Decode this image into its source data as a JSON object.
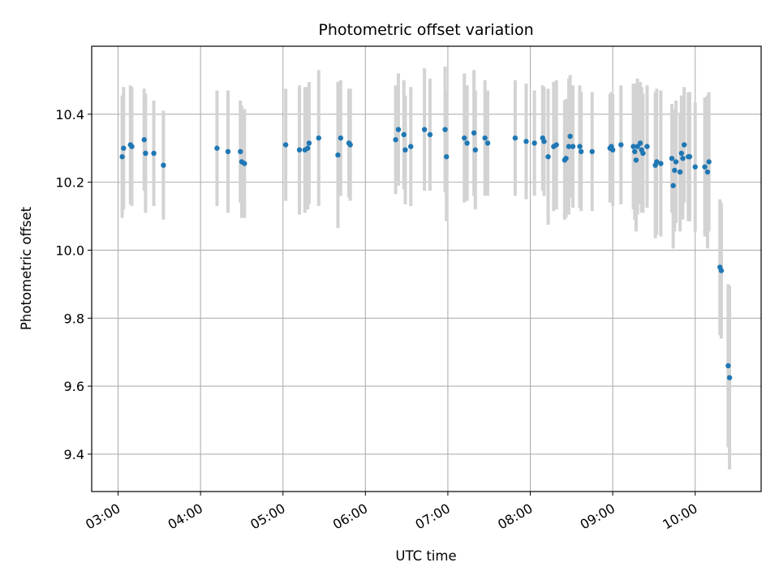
{
  "chart_data": {
    "type": "scatter",
    "title": "Photometric offset variation",
    "xlabel": "UTC time",
    "ylabel": "Photometric offset",
    "x_unit": "hours UTC",
    "xlim": [
      2.68,
      10.8
    ],
    "ylim": [
      9.29,
      10.6
    ],
    "x_ticks": [
      3,
      4,
      5,
      6,
      7,
      8,
      9,
      10
    ],
    "x_tick_labels": [
      "03:00",
      "04:00",
      "05:00",
      "06:00",
      "07:00",
      "08:00",
      "09:00",
      "10:00"
    ],
    "y_ticks": [
      9.4,
      9.6,
      9.8,
      10.0,
      10.2,
      10.4
    ],
    "y_tick_labels": [
      "9.4",
      "9.6",
      "9.8",
      "10.0",
      "10.2",
      "10.4"
    ],
    "grid": true,
    "marker_color": "#1f77b4",
    "errorbar_color": "#d3d3d3",
    "series": [
      {
        "x": [
          "03:03",
          "03:04",
          "03:09",
          "03:10",
          "03:19",
          "03:20",
          "03:26",
          "03:33",
          "04:12",
          "04:20",
          "04:29",
          "04:30",
          "04:32",
          "05:02",
          "05:12",
          "05:16",
          "05:18",
          "05:19",
          "05:26",
          "05:40",
          "05:42",
          "05:48",
          "05:49",
          "06:22",
          "06:24",
          "06:28",
          "06:29",
          "06:33",
          "06:43",
          "06:47",
          "06:58",
          "06:59",
          "07:12",
          "07:14",
          "07:19",
          "07:20",
          "07:27",
          "07:29",
          "07:49",
          "07:57",
          "08:03",
          "08:09",
          "08:10",
          "08:13",
          "08:17",
          "08:19",
          "08:25",
          "08:26",
          "08:28",
          "08:29",
          "08:31",
          "08:36",
          "08:37",
          "08:45",
          "08:58",
          "08:59",
          "09:00",
          "09:06",
          "09:15",
          "09:16",
          "09:17",
          "09:18",
          "09:20",
          "09:21",
          "09:22",
          "09:25",
          "09:31",
          "09:32",
          "09:35",
          "09:43",
          "09:44",
          "09:45",
          "09:46",
          "09:49",
          "09:50",
          "09:51",
          "09:52",
          "09:55",
          "09:56",
          "10:00",
          "10:07",
          "10:09",
          "10:10",
          "10:18",
          "10:19",
          "10:24",
          "10:25"
        ],
        "y": [
          10.275,
          10.3,
          10.31,
          10.305,
          10.325,
          10.285,
          10.285,
          10.25,
          10.3,
          10.29,
          10.29,
          10.26,
          10.255,
          10.31,
          10.295,
          10.295,
          10.3,
          10.315,
          10.33,
          10.28,
          10.33,
          10.315,
          10.31,
          10.325,
          10.355,
          10.34,
          10.295,
          10.305,
          10.355,
          10.34,
          10.355,
          10.275,
          10.33,
          10.315,
          10.345,
          10.295,
          10.33,
          10.315,
          10.33,
          10.32,
          10.315,
          10.33,
          10.32,
          10.275,
          10.305,
          10.31,
          10.265,
          10.27,
          10.305,
          10.335,
          10.305,
          10.305,
          10.29,
          10.29,
          10.3,
          10.305,
          10.295,
          10.31,
          10.305,
          10.29,
          10.265,
          10.305,
          10.315,
          10.295,
          10.285,
          10.305,
          10.25,
          10.26,
          10.255,
          10.27,
          10.19,
          10.235,
          10.26,
          10.23,
          10.285,
          10.27,
          10.31,
          10.275,
          10.275,
          10.245,
          10.245,
          10.23,
          10.26,
          9.95,
          9.94,
          9.66,
          9.625
        ],
        "y_err": [
          0.18,
          0.18,
          0.175,
          0.175,
          0.15,
          0.175,
          0.155,
          0.16,
          0.17,
          0.18,
          0.15,
          0.165,
          0.16,
          0.165,
          0.19,
          0.185,
          0.18,
          0.18,
          0.2,
          0.215,
          0.17,
          0.16,
          0.165,
          0.16,
          0.165,
          0.16,
          0.16,
          0.175,
          0.18,
          0.165,
          0.185,
          0.19,
          0.19,
          0.17,
          0.185,
          0.175,
          0.17,
          0.155,
          0.17,
          0.17,
          0.155,
          0.155,
          0.16,
          0.2,
          0.19,
          0.19,
          0.175,
          0.175,
          0.2,
          0.18,
          0.18,
          0.18,
          0.175,
          0.175,
          0.16,
          0.16,
          0.165,
          0.175,
          0.185,
          0.2,
          0.21,
          0.2,
          0.18,
          0.185,
          0.175,
          0.18,
          0.215,
          0.215,
          0.215,
          0.16,
          0.185,
          0.18,
          0.18,
          0.175,
          0.17,
          0.18,
          0.17,
          0.19,
          0.19,
          0.19,
          0.205,
          0.225,
          0.205,
          0.2,
          0.2,
          0.24,
          0.27
        ]
      }
    ]
  }
}
